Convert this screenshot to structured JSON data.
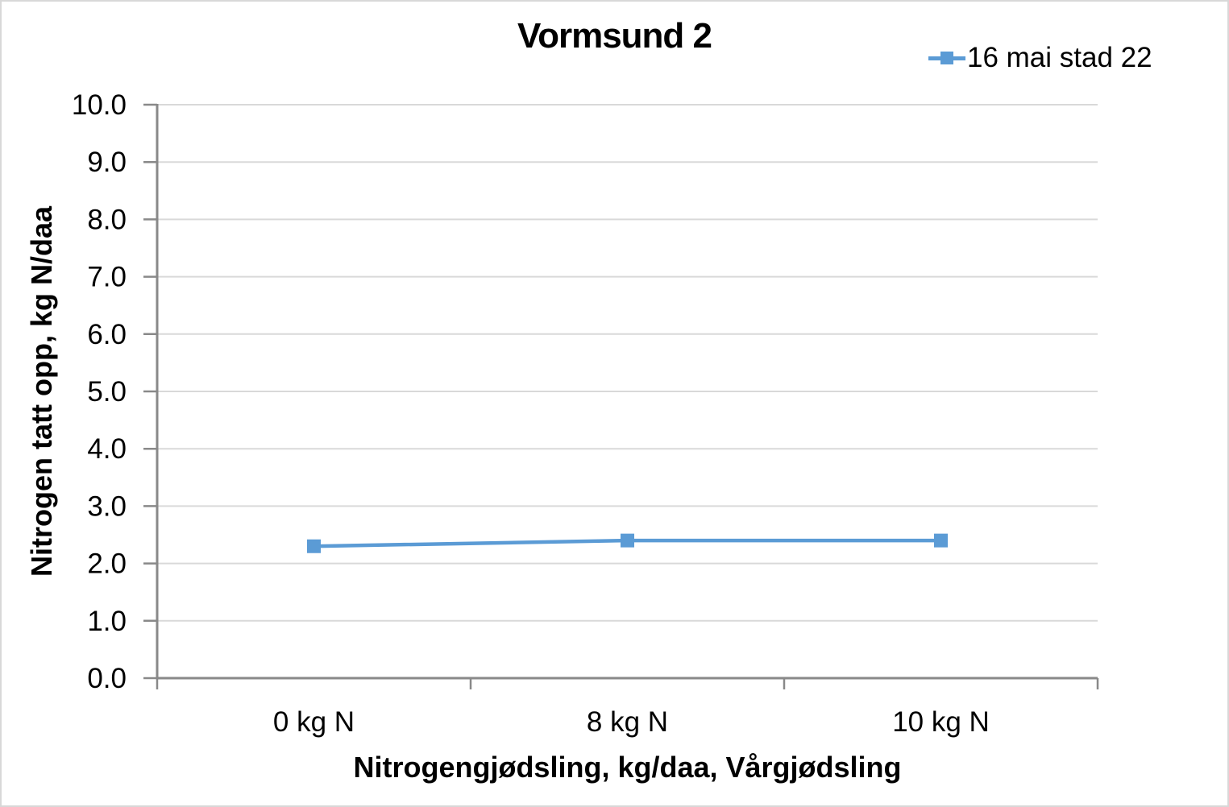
{
  "chart_data": {
    "type": "line",
    "title": "Vormsund 2",
    "categories": [
      "0 kg N",
      "8 kg N",
      "10 kg N"
    ],
    "series": [
      {
        "name": "16 mai stad 22",
        "values": [
          2.3,
          2.4,
          2.4
        ],
        "color": "#5B9BD5",
        "marker": "square"
      }
    ],
    "xlabel": "Nitrogengjødsling, kg/daa, Vårgjødsling",
    "ylabel": "Nitrogen tatt opp, kg N/daa",
    "ylim": [
      0,
      10
    ],
    "ytick_step": 1,
    "ytick_decimals": 1,
    "grid": true,
    "legend_position": "top-right"
  },
  "colors": {
    "series_blue": "#5B9BD5",
    "gridline": "#D9D9D9",
    "axis": "#898989",
    "text": "#000000",
    "canvas_border": "#D8D8D8"
  }
}
